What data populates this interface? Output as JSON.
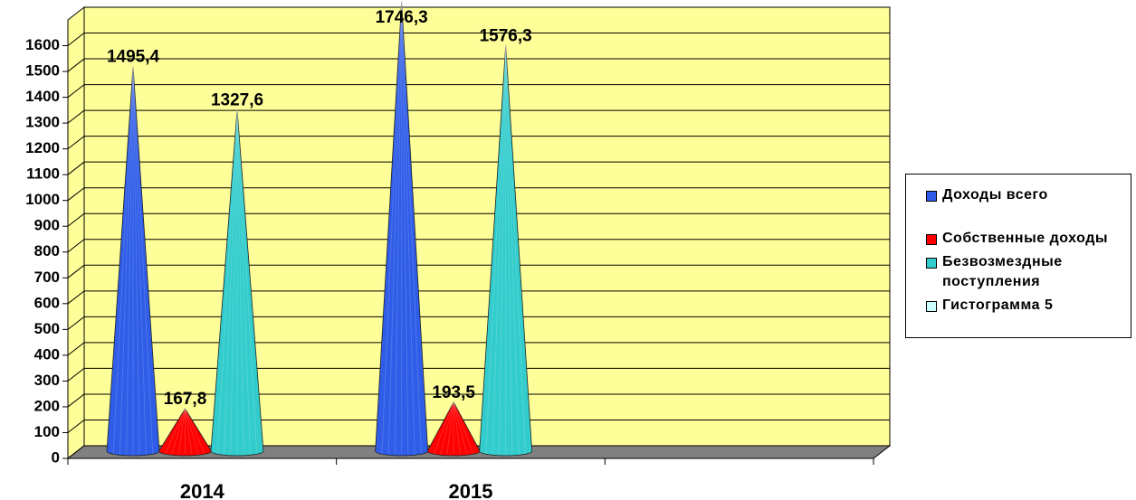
{
  "chart_data": {
    "type": "cone",
    "categories": [
      "2014",
      "2015",
      null
    ],
    "series": [
      {
        "name": "Доходы всего",
        "color": "#2f5de8",
        "values": [
          1495.4,
          1746.3,
          null
        ],
        "value_labels": [
          "1495,4",
          "1746,3",
          null
        ]
      },
      {
        "name": "Собственные доходы",
        "color": "#ff0000",
        "values": [
          167.8,
          193.5,
          null
        ],
        "value_labels": [
          "167,8",
          "193,5",
          null
        ]
      },
      {
        "name": "Безвозмездные поступления",
        "color": "#33cccc",
        "values": [
          1327.6,
          1576.3,
          null
        ],
        "value_labels": [
          "1327,6",
          "1576,3",
          null
        ]
      },
      {
        "name": "Гистограмма 5",
        "color": "#ccffff",
        "values": [
          null,
          null,
          null
        ]
      }
    ],
    "ylim": [
      0,
      1700
    ],
    "yticks": [
      0,
      100,
      200,
      300,
      400,
      500,
      600,
      700,
      800,
      900,
      1000,
      1100,
      1200,
      1300,
      1400,
      1500,
      1600
    ],
    "grid": true,
    "wall_color": "#ffff99",
    "floor_color": "#808080",
    "legend": "right"
  }
}
